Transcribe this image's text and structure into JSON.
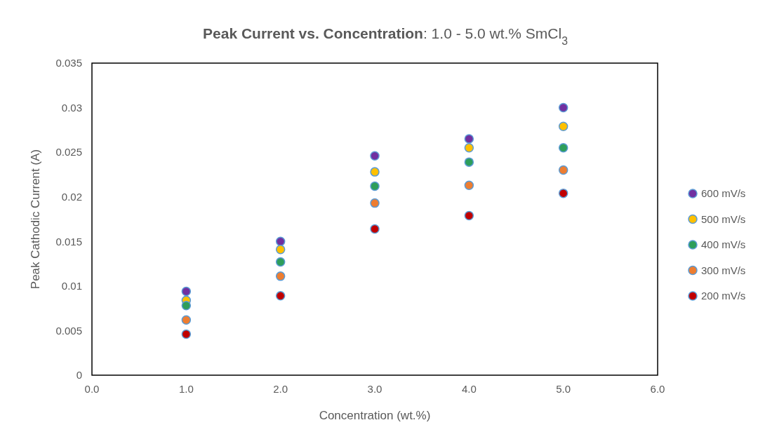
{
  "chart_data": {
    "type": "scatter",
    "title": "Peak Current vs. Concentration: 1.0 - 5.0 wt.% SmCl$_{3}$",
    "xlabel": "Concentration (wt.%)",
    "ylabel": "Peak Cathodic Current (A)",
    "x": [
      1,
      2,
      3,
      4,
      5
    ],
    "series": [
      {
        "name": "600 mV/s",
        "color": "#7030a0",
        "values": [
          0.0094,
          0.015,
          0.0246,
          0.0265,
          0.03
        ]
      },
      {
        "name": "500 mV/s",
        "color": "#ffc000",
        "values": [
          0.0084,
          0.0141,
          0.0228,
          0.0255,
          0.0279
        ]
      },
      {
        "name": "400 mV/s",
        "color": "#2e9e5b",
        "values": [
          0.0078,
          0.0127,
          0.0212,
          0.0239,
          0.0255
        ]
      },
      {
        "name": "300 mV/s",
        "color": "#ed7d31",
        "values": [
          0.0062,
          0.0111,
          0.0193,
          0.0213,
          0.023
        ]
      },
      {
        "name": "200 mV/s",
        "color": "#c00000",
        "values": [
          0.0046,
          0.0089,
          0.0164,
          0.0179,
          0.0204
        ]
      }
    ],
    "xlim": [
      0,
      6
    ],
    "xticks": [
      {
        "value": 0,
        "label": "0.0"
      },
      {
        "value": 1,
        "label": "1.0"
      },
      {
        "value": 2,
        "label": "2.0"
      },
      {
        "value": 3,
        "label": "3.0"
      },
      {
        "value": 4,
        "label": "4.0"
      },
      {
        "value": 5,
        "label": "5.0"
      },
      {
        "value": 6,
        "label": "6.0"
      }
    ],
    "ylim": [
      0,
      0.035
    ],
    "yticks": [
      0,
      0.005,
      0.01,
      0.015,
      0.02,
      0.025,
      0.03,
      0.035
    ],
    "legend": "right",
    "marker": "circle",
    "grid": false
  }
}
